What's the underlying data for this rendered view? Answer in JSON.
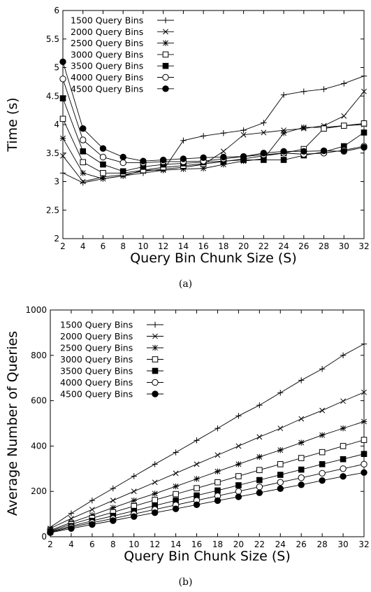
{
  "chart_data": [
    {
      "type": "line",
      "xlabel": "Query Bin Chunk Size (S)",
      "ylabel": "Time (s)",
      "xlim": [
        2,
        32
      ],
      "ylim": [
        2,
        6
      ],
      "x_ticks": [
        "2",
        "4",
        "6",
        "8",
        "10",
        "12",
        "14",
        "16",
        "18",
        "20",
        "22",
        "24",
        "26",
        "28",
        "30",
        "32"
      ],
      "y_ticks": [
        "2",
        "2.5",
        "3",
        "3.5",
        "4",
        "4.5",
        "5",
        "5.5",
        "6"
      ],
      "legend_position": "top-left",
      "grid": false,
      "caption": "(a)",
      "x": [
        2,
        4,
        6,
        8,
        10,
        12,
        14,
        16,
        18,
        20,
        22,
        24,
        26,
        28,
        30,
        32
      ],
      "series": [
        {
          "name": "1500 Query Bins",
          "marker": "plus",
          "values": [
            3.15,
            2.98,
            3.05,
            3.1,
            3.15,
            3.2,
            3.72,
            3.8,
            3.85,
            3.9,
            4.03,
            4.52,
            4.58,
            4.62,
            4.72,
            4.85
          ]
        },
        {
          "name": "2000 Query Bins",
          "marker": "x",
          "values": [
            3.45,
            3.0,
            3.08,
            3.12,
            3.18,
            3.22,
            3.25,
            3.3,
            3.53,
            3.82,
            3.86,
            3.9,
            3.93,
            3.98,
            4.15,
            4.58
          ]
        },
        {
          "name": "2500 Query Bins",
          "marker": "asterisk",
          "values": [
            3.76,
            3.15,
            3.05,
            3.1,
            3.2,
            3.2,
            3.22,
            3.23,
            3.3,
            3.36,
            3.4,
            3.85,
            3.95,
            3.95,
            3.98,
            4.0
          ]
        },
        {
          "name": "3000 Query Bins",
          "marker": "open-square",
          "values": [
            4.1,
            3.34,
            3.15,
            3.15,
            3.2,
            3.25,
            3.28,
            3.31,
            3.35,
            3.4,
            3.45,
            3.5,
            3.57,
            3.93,
            3.98,
            4.02
          ]
        },
        {
          "name": "3500 Query Bins",
          "marker": "filled-square",
          "values": [
            4.46,
            3.53,
            3.3,
            3.18,
            3.26,
            3.3,
            3.32,
            3.34,
            3.36,
            3.38,
            3.38,
            3.38,
            3.46,
            3.52,
            3.62,
            3.86
          ]
        },
        {
          "name": "4000 Query Bins",
          "marker": "open-circle",
          "values": [
            4.8,
            3.73,
            3.43,
            3.33,
            3.33,
            3.35,
            3.35,
            3.36,
            3.4,
            3.44,
            3.47,
            3.5,
            3.48,
            3.5,
            3.55,
            3.62
          ]
        },
        {
          "name": "4500 Query Bins",
          "marker": "filled-circle",
          "values": [
            5.1,
            3.93,
            3.58,
            3.43,
            3.36,
            3.38,
            3.4,
            3.42,
            3.43,
            3.44,
            3.5,
            3.53,
            3.53,
            3.54,
            3.53,
            3.6
          ]
        }
      ]
    },
    {
      "type": "line",
      "xlabel": "Query Bin Chunk Size (S)",
      "ylabel": "Average Number of Queries",
      "xlim": [
        2,
        32
      ],
      "ylim": [
        0,
        1000
      ],
      "x_ticks": [
        "2",
        "4",
        "6",
        "8",
        "10",
        "12",
        "14",
        "16",
        "18",
        "20",
        "22",
        "24",
        "26",
        "28",
        "30",
        "32"
      ],
      "y_ticks": [
        "0",
        "200",
        "400",
        "600",
        "800",
        "1000"
      ],
      "legend_position": "top-left",
      "grid": false,
      "caption": "(b)",
      "x": [
        2,
        4,
        6,
        8,
        10,
        12,
        14,
        16,
        18,
        20,
        22,
        24,
        26,
        28,
        30,
        32
      ],
      "series": [
        {
          "name": "1500 Query Bins",
          "marker": "plus",
          "values": [
            42,
            103,
            160,
            213,
            267,
            320,
            372,
            425,
            478,
            533,
            580,
            635,
            690,
            740,
            800,
            850
          ]
        },
        {
          "name": "2000 Query Bins",
          "marker": "x",
          "values": [
            37,
            80,
            120,
            160,
            200,
            240,
            280,
            320,
            360,
            400,
            440,
            478,
            520,
            557,
            598,
            637
          ]
        },
        {
          "name": "2500 Query Bins",
          "marker": "asterisk",
          "values": [
            28,
            63,
            95,
            128,
            160,
            190,
            222,
            255,
            288,
            320,
            352,
            382,
            415,
            448,
            478,
            508
          ]
        },
        {
          "name": "3000 Query Bins",
          "marker": "open-square",
          "values": [
            25,
            55,
            82,
            108,
            135,
            162,
            188,
            214,
            240,
            267,
            294,
            320,
            347,
            373,
            400,
            427
          ]
        },
        {
          "name": "3500 Query Bins",
          "marker": "filled-square",
          "values": [
            22,
            47,
            70,
            92,
            114,
            137,
            160,
            182,
            204,
            227,
            250,
            273,
            296,
            320,
            342,
            365
          ]
        },
        {
          "name": "4000 Query Bins",
          "marker": "open-circle",
          "values": [
            20,
            42,
            62,
            80,
            100,
            120,
            140,
            160,
            180,
            200,
            220,
            240,
            260,
            280,
            300,
            320
          ]
        },
        {
          "name": "4500 Query Bins",
          "marker": "filled-circle",
          "values": [
            18,
            36,
            54,
            71,
            89,
            106,
            123,
            141,
            159,
            176,
            194,
            212,
            229,
            248,
            266,
            283
          ]
        }
      ]
    }
  ]
}
